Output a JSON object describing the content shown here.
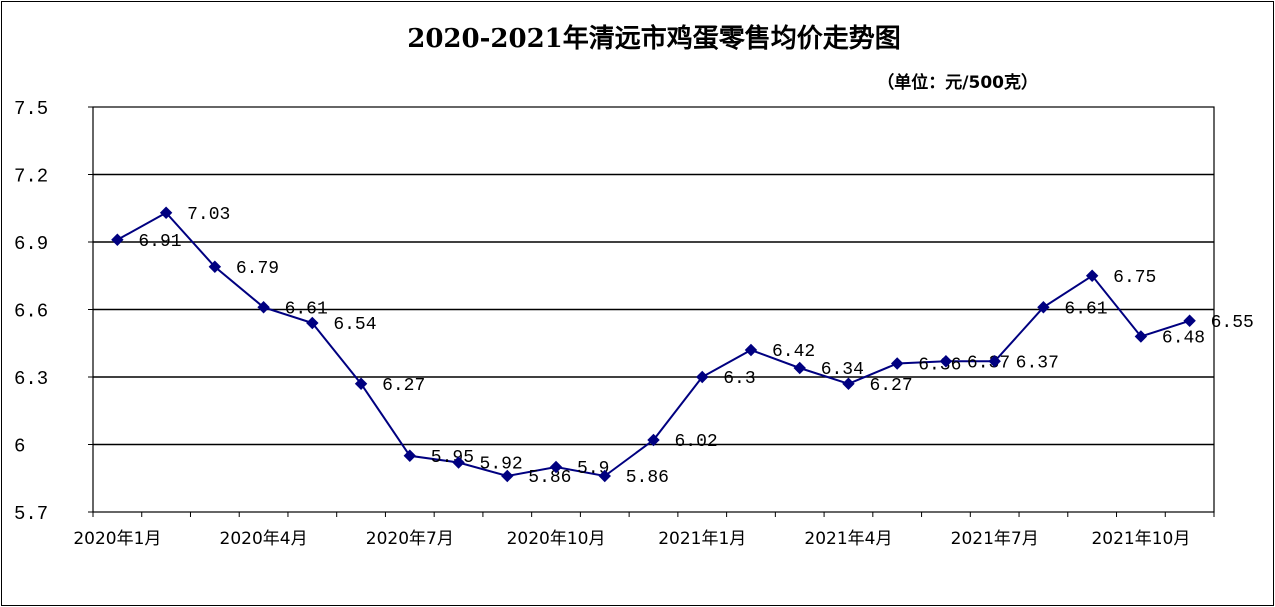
{
  "chart_data": {
    "type": "line",
    "title": "2020-2021年清远市鸡蛋零售均价走势图",
    "unit_label": "（单位：元/500克）",
    "ylim": [
      5.7,
      7.5
    ],
    "yticks": [
      "7.5",
      "7.2",
      "6.9",
      "6.6",
      "6.3",
      "6",
      "5.7"
    ],
    "ytick_values": [
      7.5,
      7.2,
      6.9,
      6.6,
      6.3,
      6.0,
      5.7
    ],
    "x_tick_labels": [
      "2020年1月",
      "2020年4月",
      "2020年7月",
      "2020年10月",
      "2021年1月",
      "2021年4月",
      "2021年7月",
      "2021年10月"
    ],
    "x_tick_indices": [
      0,
      3,
      6,
      9,
      12,
      15,
      18,
      21
    ],
    "grid": true,
    "legend": "none",
    "series": [
      {
        "color": "#000080",
        "values": [
          6.91,
          7.03,
          6.79,
          6.61,
          6.54,
          6.27,
          5.95,
          5.92,
          5.86,
          5.9,
          5.86,
          6.02,
          6.3,
          6.42,
          6.34,
          6.27,
          6.36,
          6.37,
          6.37,
          6.61,
          6.75,
          6.48,
          6.55
        ],
        "labels": [
          "6.91",
          "7.03",
          "6.79",
          "6.61",
          "6.54",
          "6.27",
          "5.95",
          "5.92",
          "5.86",
          "5.9",
          "5.86",
          "6.02",
          "6.3",
          "6.42",
          "6.34",
          "6.27",
          "6.36",
          "6.37",
          "6.37",
          "6.61",
          "6.75",
          "6.48",
          "6.55"
        ]
      }
    ]
  }
}
